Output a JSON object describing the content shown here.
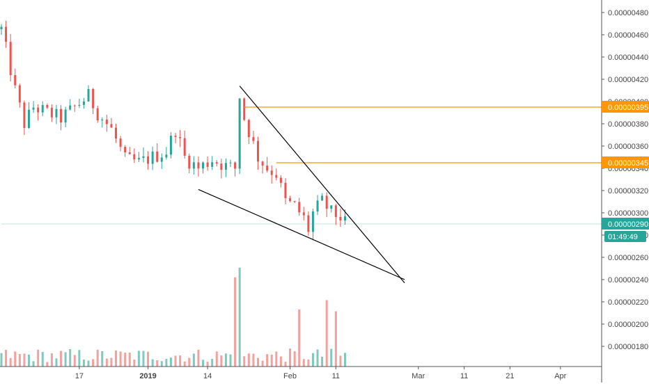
{
  "chart_data": {
    "type": "candlestick",
    "title": "",
    "price_scale": {
      "ticks": [
        "0.00000480",
        "0.00000460",
        "0.00000440",
        "0.00000420",
        "0.00000400",
        "0.00000380",
        "0.00000360",
        "0.00000340",
        "0.00000320",
        "0.00000300",
        "0.00000280",
        "0.00000260",
        "0.00000240",
        "0.00000220",
        "0.00000200",
        "0.00000180"
      ],
      "visible_range": [
        1.63e-06,
        4.9e-06
      ]
    },
    "time_scale": {
      "ticks": [
        {
          "label": "17",
          "bold": false,
          "x": 17
        },
        {
          "label": "2019",
          "bold": true,
          "x": 32
        },
        {
          "label": "14",
          "bold": false,
          "x": 45
        },
        {
          "label": "Feb",
          "bold": false,
          "x": 63
        },
        {
          "label": "11",
          "bold": false,
          "x": 73
        },
        {
          "label": "Mar",
          "bold": false,
          "x": 91
        },
        {
          "label": "11",
          "bold": false,
          "x": 101
        },
        {
          "label": "21",
          "bold": false,
          "x": 111
        },
        {
          "label": "Apr",
          "bold": false,
          "x": 122
        }
      ],
      "visible_range": [
        0,
        131
      ]
    },
    "series_summary": {
      "first_close": 4.65e-06,
      "last_close": 2.9e-06,
      "bars": 76
    },
    "price_badges": [
      {
        "label": "0.00000395",
        "value": 3.95e-06,
        "color": "#ff9800"
      },
      {
        "label": "0.00000345",
        "value": 3.45e-06,
        "color": "#ff9800"
      },
      {
        "label": "0.00000290",
        "value": 2.9e-06,
        "color": "#26a69a"
      }
    ],
    "countdown": "01:49:49",
    "horizontal_lines": [
      {
        "value": 3.95e-06,
        "from_x": 53,
        "color": "#ff9800"
      },
      {
        "value": 3.45e-06,
        "from_x": 60,
        "color": "#ff9800"
      },
      {
        "value": 2.9e-06,
        "from_x": 0,
        "color": "#26a69a"
      }
    ],
    "trendlines": [
      {
        "from": {
          "x": 52,
          "y": 4.14e-06
        },
        "to": {
          "x": 88,
          "y": 2.37e-06
        }
      },
      {
        "from": {
          "x": 43,
          "y": 3.21e-06
        },
        "to": {
          "x": 88,
          "y": 2.4e-06
        }
      }
    ],
    "colors": {
      "up": "#26a69a",
      "down": "#ef5350",
      "volume_up": "#7fc9c1",
      "volume_down": "#f4a09c",
      "axis": "#444444",
      "text": "#444444"
    }
  }
}
